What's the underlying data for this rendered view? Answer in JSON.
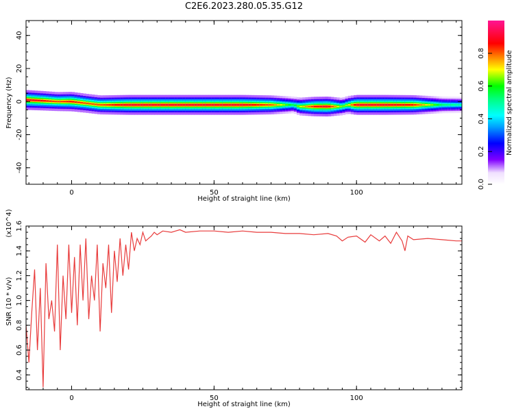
{
  "title": "C2E6.2023.280.05.35.G12",
  "chart_data": [
    {
      "type": "heatmap",
      "xlabel": "Height of straight line (km)",
      "ylabel": "Frequency (Hz)",
      "xlim": [
        -16,
        137
      ],
      "ylim": [
        -50,
        49
      ],
      "xticks": [
        0,
        50,
        100
      ],
      "yticks": [
        -40,
        -20,
        0,
        20,
        40
      ],
      "colorbar": {
        "label": "Normalized spectral amplitude",
        "range": [
          0,
          1
        ],
        "ticks": [
          0.0,
          0.2,
          0.4,
          0.6,
          0.8
        ]
      },
      "ridge": {
        "x": [
          -16,
          -10,
          -5,
          0,
          5,
          10,
          15,
          20,
          30,
          40,
          50,
          60,
          70,
          78,
          80,
          85,
          90,
          95,
          97,
          100,
          110,
          120,
          130,
          137
        ],
        "frequency": [
          1,
          0.5,
          0,
          0,
          -1,
          -2,
          -2,
          -2,
          -2,
          -2,
          -2,
          -2,
          -2,
          -2,
          -3,
          -3,
          -3,
          -3,
          -2,
          -2,
          -2,
          -2,
          -2,
          -2
        ],
        "amplitude": [
          1.0,
          0.95,
          0.9,
          0.95,
          0.9,
          0.9,
          0.95,
          1.0,
          1.0,
          1.0,
          1.0,
          1.0,
          0.9,
          0.6,
          0.75,
          0.95,
          1.0,
          0.7,
          0.75,
          1.0,
          1.0,
          0.95,
          0.6,
          0.55
        ]
      }
    },
    {
      "type": "line",
      "xlabel": "Height of straight line (km)",
      "ylabel": "SNR (10 * v/v)",
      "yscale_note": "(x10^4)",
      "xlim": [
        -16,
        137
      ],
      "ylim": [
        0.28,
        1.6
      ],
      "xticks": [
        0,
        50,
        100
      ],
      "yticks": [
        0.4,
        0.6,
        0.8,
        1.0,
        1.2,
        1.4,
        1.6
      ],
      "color": "#e83a3a",
      "series": [
        {
          "x": [
            -16,
            -15,
            -14,
            -13,
            -12,
            -11,
            -10,
            -9,
            -8,
            -7,
            -6,
            -5,
            -4,
            -3,
            -2,
            -1,
            0,
            1,
            2,
            3,
            4,
            5,
            6,
            7,
            8,
            9,
            10,
            11,
            12,
            13,
            14,
            15,
            16,
            17,
            18,
            19,
            20,
            21,
            22,
            23,
            24,
            25,
            26,
            27,
            28,
            29,
            30,
            32,
            35,
            38,
            40,
            45,
            50,
            55,
            60,
            65,
            70,
            75,
            80,
            85,
            90,
            93,
            95,
            97,
            100,
            103,
            105,
            108,
            110,
            112,
            114,
            116,
            117,
            118,
            120,
            125,
            130,
            135,
            137
          ],
          "y": [
            0.8,
            0.5,
            0.9,
            1.25,
            0.6,
            1.1,
            0.3,
            1.3,
            0.85,
            1.0,
            0.75,
            1.45,
            0.6,
            1.2,
            0.85,
            1.45,
            0.9,
            1.35,
            0.8,
            1.45,
            1.0,
            1.5,
            0.85,
            1.2,
            1.0,
            1.45,
            0.75,
            1.3,
            1.1,
            1.45,
            0.9,
            1.4,
            1.15,
            1.5,
            1.2,
            1.45,
            1.25,
            1.55,
            1.4,
            1.5,
            1.45,
            1.55,
            1.48,
            1.5,
            1.52,
            1.55,
            1.53,
            1.56,
            1.55,
            1.57,
            1.55,
            1.56,
            1.56,
            1.55,
            1.56,
            1.55,
            1.55,
            1.54,
            1.54,
            1.53,
            1.54,
            1.52,
            1.48,
            1.51,
            1.52,
            1.47,
            1.53,
            1.48,
            1.52,
            1.46,
            1.55,
            1.48,
            1.4,
            1.52,
            1.49,
            1.5,
            1.49,
            1.48,
            1.48
          ]
        }
      ]
    }
  ]
}
